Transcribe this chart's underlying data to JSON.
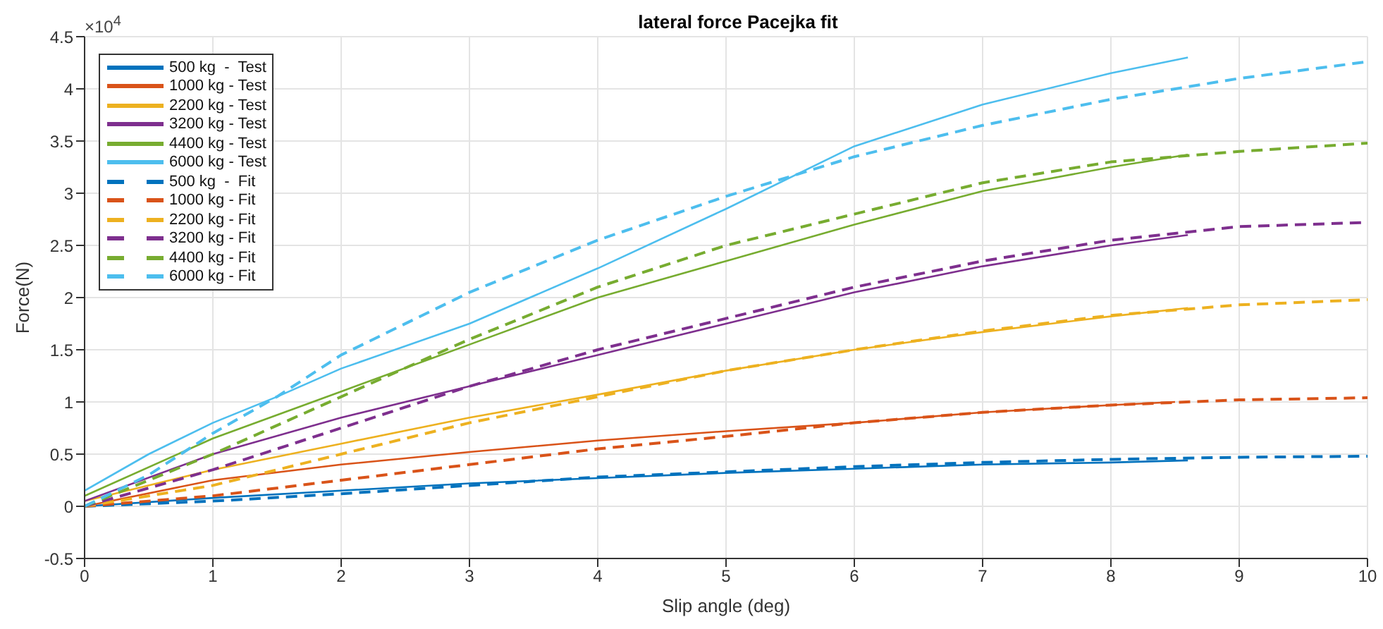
{
  "chart_data": {
    "type": "line",
    "title": "lateral force Pacejka fit",
    "xlabel": "Slip angle (deg)",
    "ylabel": "Force(N)",
    "annotations": [
      "×10$^{4}$"
    ],
    "xlim": [
      0,
      10
    ],
    "xticks": [
      0,
      1,
      2,
      3,
      4,
      5,
      6,
      7,
      8,
      9,
      10
    ],
    "ylim": [
      -0.5,
      4.5
    ],
    "yticks": [
      -0.5,
      0,
      0.5,
      1,
      1.5,
      2,
      2.5,
      3,
      3.5,
      4,
      4.5
    ],
    "grid": true,
    "legend": "top left",
    "marker": "none",
    "series": [
      {
        "name": "500 kg  -  Test",
        "color": "#0072bd",
        "line_style": "solid",
        "x": [
          0,
          1,
          2,
          3,
          4,
          5,
          6,
          7,
          8,
          8.6
        ],
        "values": [
          0,
          0.08,
          0.15,
          0.22,
          0.27,
          0.32,
          0.36,
          0.4,
          0.42,
          0.44
        ]
      },
      {
        "name": "1000 kg - Test",
        "color": "#d95319",
        "line_style": "solid",
        "x": [
          0,
          1,
          2,
          3,
          4,
          5,
          6,
          7,
          8,
          8.5
        ],
        "values": [
          0,
          0.25,
          0.4,
          0.52,
          0.63,
          0.72,
          0.8,
          0.9,
          0.97,
          1.0
        ]
      },
      {
        "name": "2200 kg - Test",
        "color": "#edb120",
        "line_style": "solid",
        "x": [
          0,
          1,
          2,
          3,
          4,
          5,
          6,
          7,
          8,
          8.6
        ],
        "values": [
          0.05,
          0.35,
          0.6,
          0.85,
          1.07,
          1.3,
          1.5,
          1.67,
          1.82,
          1.9
        ]
      },
      {
        "name": "3200 kg - Test",
        "color": "#7e2f8e",
        "line_style": "solid",
        "x": [
          0,
          1,
          2,
          3,
          4,
          5,
          6,
          7,
          8,
          8.6
        ],
        "values": [
          0.05,
          0.5,
          0.85,
          1.15,
          1.45,
          1.75,
          2.05,
          2.3,
          2.5,
          2.6
        ]
      },
      {
        "name": "4400 kg - Test",
        "color": "#77ac30",
        "line_style": "solid",
        "x": [
          0,
          1,
          2,
          3,
          4,
          5,
          6,
          7,
          8,
          8.6
        ],
        "values": [
          0.1,
          0.65,
          1.1,
          1.55,
          2.0,
          2.35,
          2.7,
          3.02,
          3.25,
          3.37
        ]
      },
      {
        "name": "6000 kg - Test",
        "color": "#4dbeee",
        "line_style": "solid",
        "x": [
          0,
          0.5,
          1,
          1.5,
          2,
          3,
          4,
          5,
          6,
          7,
          8,
          8.6
        ],
        "values": [
          0.15,
          0.5,
          0.8,
          1.05,
          1.32,
          1.75,
          2.28,
          2.85,
          3.45,
          3.85,
          4.15,
          4.3
        ]
      },
      {
        "name": "500 kg  -  Fit",
        "color": "#0072bd",
        "line_style": "dashed",
        "x": [
          0,
          1,
          2,
          3,
          4,
          5,
          6,
          7,
          8,
          9,
          10
        ],
        "values": [
          0,
          0.05,
          0.12,
          0.2,
          0.28,
          0.33,
          0.38,
          0.42,
          0.45,
          0.47,
          0.48
        ]
      },
      {
        "name": "1000 kg - Fit",
        "color": "#d95319",
        "line_style": "dashed",
        "x": [
          0,
          1,
          2,
          3,
          4,
          5,
          6,
          7,
          8,
          9,
          10
        ],
        "values": [
          0,
          0.1,
          0.25,
          0.4,
          0.55,
          0.67,
          0.8,
          0.9,
          0.97,
          1.02,
          1.04
        ]
      },
      {
        "name": "2200 kg - Fit",
        "color": "#edb120",
        "line_style": "dashed",
        "x": [
          0,
          1,
          2,
          3,
          4,
          5,
          6,
          7,
          8,
          9,
          10
        ],
        "values": [
          0,
          0.2,
          0.5,
          0.8,
          1.05,
          1.3,
          1.5,
          1.68,
          1.83,
          1.93,
          1.98
        ]
      },
      {
        "name": "3200 kg - Fit",
        "color": "#7e2f8e",
        "line_style": "dashed",
        "x": [
          0,
          1,
          2,
          3,
          4,
          5,
          6,
          7,
          8,
          9,
          10
        ],
        "values": [
          0,
          0.35,
          0.75,
          1.15,
          1.5,
          1.8,
          2.1,
          2.35,
          2.55,
          2.68,
          2.72
        ]
      },
      {
        "name": "4400 kg - Fit",
        "color": "#77ac30",
        "line_style": "dashed",
        "x": [
          0,
          1,
          2,
          3,
          4,
          5,
          6,
          7,
          8,
          9,
          10
        ],
        "values": [
          0,
          0.5,
          1.05,
          1.6,
          2.1,
          2.5,
          2.8,
          3.1,
          3.3,
          3.4,
          3.48
        ]
      },
      {
        "name": "6000 kg - Fit",
        "color": "#4dbeee",
        "line_style": "dashed",
        "x": [
          0,
          0.5,
          1,
          1.5,
          2,
          3,
          4,
          5,
          6,
          7,
          8,
          9,
          10
        ],
        "values": [
          0,
          0.3,
          0.7,
          1.05,
          1.45,
          2.05,
          2.55,
          2.97,
          3.35,
          3.65,
          3.9,
          4.1,
          4.26
        ]
      }
    ]
  }
}
